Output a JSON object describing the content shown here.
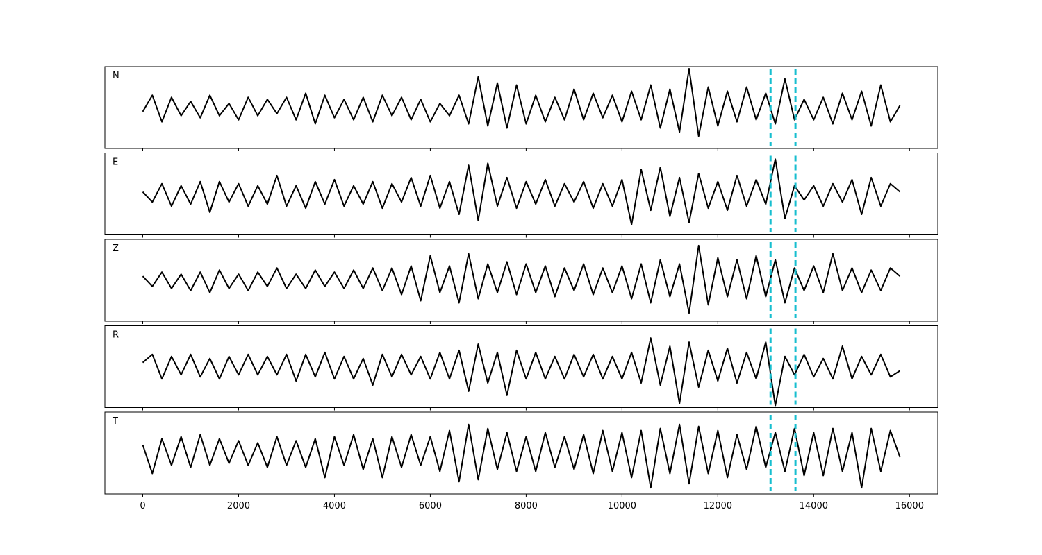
{
  "chart_data": {
    "type": "line",
    "subplots": true,
    "x": [
      0,
      200,
      400,
      600,
      800,
      1000,
      1200,
      1400,
      1600,
      1800,
      2000,
      2200,
      2400,
      2600,
      2800,
      3000,
      3200,
      3400,
      3600,
      3800,
      4000,
      4200,
      4400,
      4600,
      4800,
      5000,
      5200,
      5400,
      5600,
      5800,
      6000,
      6200,
      6400,
      6600,
      6800,
      7000,
      7200,
      7400,
      7600,
      7800,
      8000,
      8200,
      8400,
      8600,
      8800,
      9000,
      9200,
      9400,
      9600,
      9800,
      10000,
      10200,
      10400,
      10600,
      10800,
      11000,
      11200,
      11400,
      11600,
      11800,
      12000,
      12200,
      12400,
      12600,
      12800,
      13000,
      13200,
      13400,
      13600,
      13800,
      14000,
      14200,
      14400,
      14600,
      14800,
      15000,
      15200,
      15400,
      15600,
      15800
    ],
    "series": [
      {
        "name": "N",
        "color": "#000000",
        "values": [
          -0.1,
          0.3,
          -0.35,
          0.25,
          -0.2,
          0.15,
          -0.25,
          0.3,
          -0.2,
          0.1,
          -0.3,
          0.25,
          -0.2,
          0.2,
          -0.15,
          0.25,
          -0.3,
          0.35,
          -0.4,
          0.3,
          -0.25,
          0.2,
          -0.3,
          0.25,
          -0.35,
          0.3,
          -0.2,
          0.25,
          -0.3,
          0.2,
          -0.35,
          0.1,
          -0.2,
          0.3,
          -0.4,
          0.75,
          -0.45,
          0.6,
          -0.5,
          0.55,
          -0.4,
          0.3,
          -0.35,
          0.25,
          -0.3,
          0.45,
          -0.3,
          0.35,
          -0.25,
          0.3,
          -0.35,
          0.4,
          -0.3,
          0.55,
          -0.5,
          0.45,
          -0.6,
          0.95,
          -0.7,
          0.5,
          -0.45,
          0.4,
          -0.35,
          0.5,
          -0.3,
          0.35,
          -0.4,
          0.7,
          -0.3,
          0.2,
          -0.3,
          0.25,
          -0.4,
          0.35,
          -0.3,
          0.4,
          -0.45,
          0.55,
          -0.35,
          0.05
        ]
      },
      {
        "name": "E",
        "color": "#000000",
        "values": [
          0.05,
          -0.2,
          0.25,
          -0.3,
          0.2,
          -0.25,
          0.3,
          -0.45,
          0.3,
          -0.2,
          0.25,
          -0.3,
          0.2,
          -0.25,
          0.45,
          -0.3,
          0.2,
          -0.35,
          0.3,
          -0.25,
          0.35,
          -0.3,
          0.2,
          -0.25,
          0.3,
          -0.35,
          0.25,
          -0.2,
          0.4,
          -0.3,
          0.45,
          -0.35,
          0.3,
          -0.5,
          0.7,
          -0.65,
          0.75,
          -0.3,
          0.4,
          -0.35,
          0.3,
          -0.25,
          0.35,
          -0.3,
          0.25,
          -0.2,
          0.3,
          -0.35,
          0.25,
          -0.3,
          0.35,
          -0.75,
          0.6,
          -0.4,
          0.65,
          -0.55,
          0.4,
          -0.7,
          0.5,
          -0.35,
          0.3,
          -0.4,
          0.45,
          -0.3,
          0.35,
          -0.25,
          0.85,
          -0.6,
          0.2,
          -0.15,
          0.2,
          -0.3,
          0.25,
          -0.2,
          0.35,
          -0.5,
          0.4,
          -0.3,
          0.25,
          0.05
        ]
      },
      {
        "name": "Z",
        "color": "#000000",
        "values": [
          0.1,
          -0.15,
          0.2,
          -0.2,
          0.15,
          -0.25,
          0.2,
          -0.3,
          0.25,
          -0.2,
          0.15,
          -0.25,
          0.2,
          -0.15,
          0.3,
          -0.2,
          0.15,
          -0.2,
          0.25,
          -0.15,
          0.2,
          -0.2,
          0.25,
          -0.2,
          0.3,
          -0.25,
          0.3,
          -0.35,
          0.35,
          -0.5,
          0.6,
          -0.3,
          0.35,
          -0.55,
          0.65,
          -0.45,
          0.4,
          -0.3,
          0.45,
          -0.35,
          0.4,
          -0.3,
          0.35,
          -0.4,
          0.3,
          -0.25,
          0.4,
          -0.35,
          0.3,
          -0.3,
          0.35,
          -0.45,
          0.4,
          -0.55,
          0.5,
          -0.4,
          0.4,
          -0.8,
          0.85,
          -0.6,
          0.55,
          -0.4,
          0.5,
          -0.45,
          0.6,
          -0.4,
          0.5,
          -0.55,
          0.3,
          -0.25,
          0.35,
          -0.3,
          0.65,
          -0.25,
          0.3,
          -0.3,
          0.25,
          -0.25,
          0.3,
          0.1
        ]
      },
      {
        "name": "R",
        "color": "#000000",
        "values": [
          0.1,
          0.3,
          -0.3,
          0.25,
          -0.2,
          0.3,
          -0.25,
          0.2,
          -0.3,
          0.25,
          -0.2,
          0.3,
          -0.2,
          0.25,
          -0.2,
          0.3,
          -0.35,
          0.3,
          -0.25,
          0.35,
          -0.3,
          0.25,
          -0.3,
          0.2,
          -0.45,
          0.3,
          -0.25,
          0.3,
          -0.2,
          0.25,
          -0.3,
          0.35,
          -0.3,
          0.4,
          -0.6,
          0.55,
          -0.4,
          0.35,
          -0.7,
          0.4,
          -0.3,
          0.35,
          -0.3,
          0.25,
          -0.3,
          0.3,
          -0.25,
          0.3,
          -0.3,
          0.25,
          -0.3,
          0.35,
          -0.4,
          0.7,
          -0.45,
          0.5,
          -0.9,
          0.6,
          -0.5,
          0.4,
          -0.35,
          0.45,
          -0.4,
          0.35,
          -0.3,
          0.6,
          -0.95,
          0.25,
          -0.2,
          0.3,
          -0.25,
          0.2,
          -0.3,
          0.5,
          -0.3,
          0.25,
          -0.2,
          0.3,
          -0.25,
          -0.1
        ]
      },
      {
        "name": "T",
        "color": "#000000",
        "values": [
          0.2,
          -0.5,
          0.35,
          -0.3,
          0.4,
          -0.35,
          0.45,
          -0.3,
          0.35,
          -0.25,
          0.3,
          -0.3,
          0.25,
          -0.35,
          0.4,
          -0.3,
          0.3,
          -0.35,
          0.35,
          -0.6,
          0.4,
          -0.3,
          0.45,
          -0.4,
          0.35,
          -0.6,
          0.4,
          -0.35,
          0.45,
          -0.3,
          0.4,
          -0.45,
          0.55,
          -0.7,
          0.7,
          -0.65,
          0.6,
          -0.4,
          0.5,
          -0.45,
          0.4,
          -0.45,
          0.5,
          -0.35,
          0.4,
          -0.4,
          0.45,
          -0.5,
          0.55,
          -0.45,
          0.5,
          -0.6,
          0.55,
          -0.85,
          0.6,
          -0.5,
          0.7,
          -0.75,
          0.65,
          -0.5,
          0.55,
          -0.6,
          0.45,
          -0.4,
          0.65,
          -0.35,
          0.5,
          -0.45,
          0.6,
          -0.55,
          0.5,
          -0.55,
          0.6,
          -0.45,
          0.5,
          -0.85,
          0.6,
          -0.45,
          0.55,
          -0.1
        ]
      }
    ],
    "vlines": [
      13100,
      13620
    ],
    "vline_color": "#17becf",
    "xlim": [
      -790,
      16590
    ],
    "xticks": [
      0,
      2000,
      4000,
      6000,
      8000,
      10000,
      12000,
      14000,
      16000
    ],
    "ylim": [
      -1,
      1
    ]
  }
}
